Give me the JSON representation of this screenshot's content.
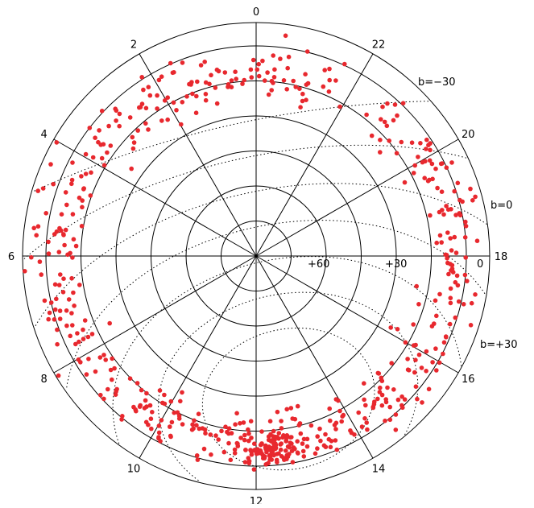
{
  "chart_data": {
    "type": "scatter",
    "projection": "polar (north equatorial), right ascension in hours, declination in degrees",
    "grid": true,
    "legend": "none",
    "dec_circles": [
      75,
      60,
      45,
      30,
      15,
      0
    ],
    "ra_spokes_hours": [
      0,
      2,
      4,
      6,
      8,
      10,
      12,
      14,
      16,
      18,
      20,
      22
    ],
    "ra_tick_labels": [
      "0",
      "2",
      "4",
      "6",
      "8",
      "10",
      "12",
      "14",
      "16",
      "18",
      "20",
      "22"
    ],
    "dec_tick_labels": [
      {
        "text": "+60",
        "dec": 60
      },
      {
        "text": "+30",
        "dec": 30
      },
      {
        "text": "0",
        "dec": 0
      }
    ],
    "galactic_latitude_labels": [
      "b=−30",
      "b=0",
      "b=+30"
    ],
    "point_color": "#e8282e",
    "clusters": [
      {
        "ra_h": 23.9,
        "dec": 12,
        "n": 28,
        "spread_ra": 0.7,
        "spread_dec": 5
      },
      {
        "ra_h": 1.7,
        "dec": 12,
        "n": 40,
        "spread_ra": 0.6,
        "spread_dec": 6
      },
      {
        "ra_h": 22.7,
        "dec": 10,
        "n": 22,
        "spread_ra": 0.6,
        "spread_dec": 6
      },
      {
        "ra_h": 3.2,
        "dec": 10,
        "n": 28,
        "spread_ra": 0.6,
        "spread_dec": 6
      },
      {
        "ra_h": 4.8,
        "dec": 6,
        "n": 30,
        "spread_ra": 0.7,
        "spread_dec": 7
      },
      {
        "ra_h": 6.2,
        "dec": 4,
        "n": 28,
        "spread_ra": 0.7,
        "spread_dec": 6
      },
      {
        "ra_h": 7.3,
        "dec": 5,
        "n": 26,
        "spread_ra": 0.7,
        "spread_dec": 6
      },
      {
        "ra_h": 8.8,
        "dec": 8,
        "n": 26,
        "spread_ra": 0.7,
        "spread_dec": 6
      },
      {
        "ra_h": 10.1,
        "dec": 9,
        "n": 40,
        "spread_ra": 0.6,
        "spread_dec": 6
      },
      {
        "ra_h": 11.3,
        "dec": 10,
        "n": 40,
        "spread_ra": 0.5,
        "spread_dec": 5
      },
      {
        "ra_h": 12.3,
        "dec": 7,
        "n": 95,
        "spread_ra": 0.3,
        "spread_dec": 4
      },
      {
        "ra_h": 13.0,
        "dec": 11,
        "n": 38,
        "spread_ra": 0.5,
        "spread_dec": 6
      },
      {
        "ra_h": 14.3,
        "dec": 8,
        "n": 40,
        "spread_ra": 0.6,
        "spread_dec": 6
      },
      {
        "ra_h": 15.6,
        "dec": 7,
        "n": 30,
        "spread_ra": 0.6,
        "spread_dec": 6
      },
      {
        "ra_h": 17.0,
        "dec": 6,
        "n": 26,
        "spread_ra": 0.6,
        "spread_dec": 5
      },
      {
        "ra_h": 18.3,
        "dec": 5,
        "n": 34,
        "spread_ra": 0.6,
        "spread_dec": 5
      },
      {
        "ra_h": 19.5,
        "dec": 6,
        "n": 30,
        "spread_ra": 0.6,
        "spread_dec": 6
      },
      {
        "ra_h": 20.8,
        "dec": 8,
        "n": 20,
        "spread_ra": 0.7,
        "spread_dec": 6
      }
    ]
  }
}
